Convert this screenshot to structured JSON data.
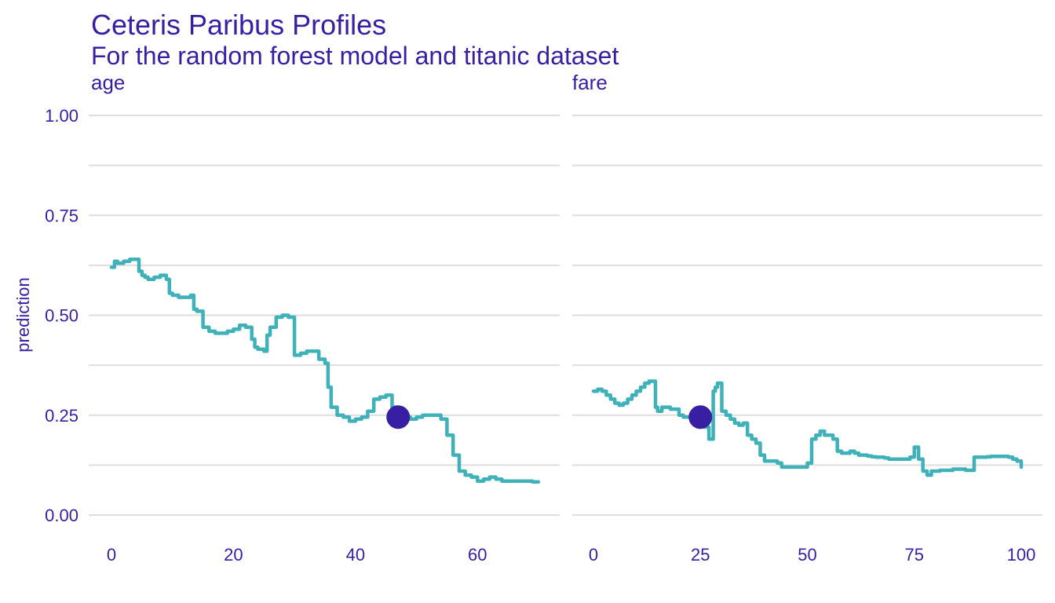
{
  "header": {
    "title": "Ceteris Paribus Profiles",
    "subtitle": "For the random forest model and titanic dataset"
  },
  "colors": {
    "text": "#371ea3",
    "profile": "#3fb1b8",
    "point": "#371ea3",
    "grid": "#dedede"
  },
  "chart_data": {
    "type": "line",
    "title": "Ceteris Paribus Profiles",
    "subtitle": "For the random forest model and titanic dataset",
    "ylabel": "prediction",
    "ylim": [
      0,
      1
    ],
    "yticks": [
      "0.00",
      "0.25",
      "0.50",
      "0.75",
      "1.00"
    ],
    "grid": true,
    "panels": [
      {
        "variable": "age",
        "xlim": [
          0,
          70
        ],
        "xticks": [
          0,
          20,
          40,
          60
        ],
        "observation": {
          "x": 47,
          "y": 0.245
        },
        "x": [
          0,
          0.5,
          1,
          2,
          3,
          4,
          4.5,
          5,
          5.5,
          6,
          7,
          8,
          9,
          9.5,
          10,
          11,
          12,
          13,
          13.5,
          14,
          15,
          16,
          17,
          18,
          19,
          20,
          21,
          22,
          23,
          23.5,
          24,
          25,
          25.5,
          26,
          27,
          28,
          29,
          29.5,
          30,
          31,
          32,
          33,
          34,
          35,
          35.5,
          36,
          37,
          38,
          39,
          40,
          41,
          42,
          43,
          44,
          45,
          46,
          47,
          48,
          49,
          50,
          51,
          52,
          53,
          54,
          55,
          56,
          57,
          58,
          59,
          60,
          61,
          62,
          63,
          64,
          65,
          66,
          67,
          68,
          69,
          70
        ],
        "y": [
          0.62,
          0.635,
          0.63,
          0.635,
          0.64,
          0.64,
          0.61,
          0.6,
          0.595,
          0.59,
          0.595,
          0.6,
          0.59,
          0.555,
          0.55,
          0.545,
          0.545,
          0.55,
          0.515,
          0.51,
          0.47,
          0.46,
          0.455,
          0.455,
          0.46,
          0.465,
          0.475,
          0.47,
          0.44,
          0.42,
          0.415,
          0.41,
          0.45,
          0.47,
          0.495,
          0.5,
          0.495,
          0.495,
          0.4,
          0.405,
          0.41,
          0.41,
          0.39,
          0.38,
          0.32,
          0.27,
          0.25,
          0.245,
          0.235,
          0.24,
          0.245,
          0.26,
          0.29,
          0.295,
          0.3,
          0.27,
          0.245,
          0.245,
          0.24,
          0.245,
          0.25,
          0.25,
          0.25,
          0.24,
          0.2,
          0.15,
          0.11,
          0.1,
          0.095,
          0.085,
          0.09,
          0.095,
          0.09,
          0.085,
          0.085,
          0.085,
          0.085,
          0.085,
          0.083,
          0.083
        ]
      },
      {
        "variable": "fare",
        "xlim": [
          0,
          100
        ],
        "xticks": [
          0,
          25,
          50,
          75,
          100
        ],
        "observation": {
          "x": 25,
          "y": 0.245
        },
        "x": [
          0,
          1,
          2,
          3,
          4,
          5,
          6,
          7,
          8,
          9,
          10,
          11,
          12,
          13,
          14,
          14.5,
          15,
          16,
          17,
          18,
          19,
          20,
          21,
          22,
          23,
          24,
          25,
          26,
          27,
          28,
          28.5,
          29,
          30,
          31,
          32,
          33,
          34,
          35,
          36,
          37,
          38,
          39,
          40,
          41,
          42,
          43,
          44,
          45,
          46,
          47,
          48,
          49,
          50,
          51,
          52,
          53,
          54,
          55,
          56,
          57,
          58,
          59,
          60,
          61,
          62,
          63,
          64,
          65,
          66,
          67,
          68,
          69,
          70,
          71,
          72,
          73,
          74,
          75,
          76,
          77,
          78,
          79,
          80,
          81,
          82,
          83,
          84,
          85,
          86,
          87,
          88,
          89,
          90,
          91,
          92,
          93,
          94,
          95,
          96,
          97,
          98,
          99,
          100
        ],
        "y": [
          0.31,
          0.315,
          0.31,
          0.3,
          0.29,
          0.28,
          0.275,
          0.28,
          0.29,
          0.3,
          0.31,
          0.32,
          0.33,
          0.335,
          0.335,
          0.27,
          0.26,
          0.27,
          0.27,
          0.265,
          0.265,
          0.25,
          0.245,
          0.245,
          0.245,
          0.245,
          0.24,
          0.22,
          0.19,
          0.31,
          0.32,
          0.33,
          0.26,
          0.25,
          0.24,
          0.23,
          0.225,
          0.23,
          0.2,
          0.19,
          0.18,
          0.15,
          0.135,
          0.135,
          0.135,
          0.13,
          0.12,
          0.12,
          0.12,
          0.12,
          0.12,
          0.12,
          0.13,
          0.19,
          0.2,
          0.21,
          0.2,
          0.2,
          0.19,
          0.16,
          0.155,
          0.155,
          0.16,
          0.155,
          0.15,
          0.15,
          0.148,
          0.146,
          0.145,
          0.145,
          0.143,
          0.14,
          0.14,
          0.14,
          0.14,
          0.14,
          0.145,
          0.17,
          0.14,
          0.11,
          0.1,
          0.11,
          0.11,
          0.112,
          0.112,
          0.112,
          0.115,
          0.115,
          0.115,
          0.112,
          0.112,
          0.145,
          0.145,
          0.145,
          0.146,
          0.147,
          0.147,
          0.147,
          0.147,
          0.145,
          0.14,
          0.135,
          0.12
        ]
      }
    ]
  }
}
